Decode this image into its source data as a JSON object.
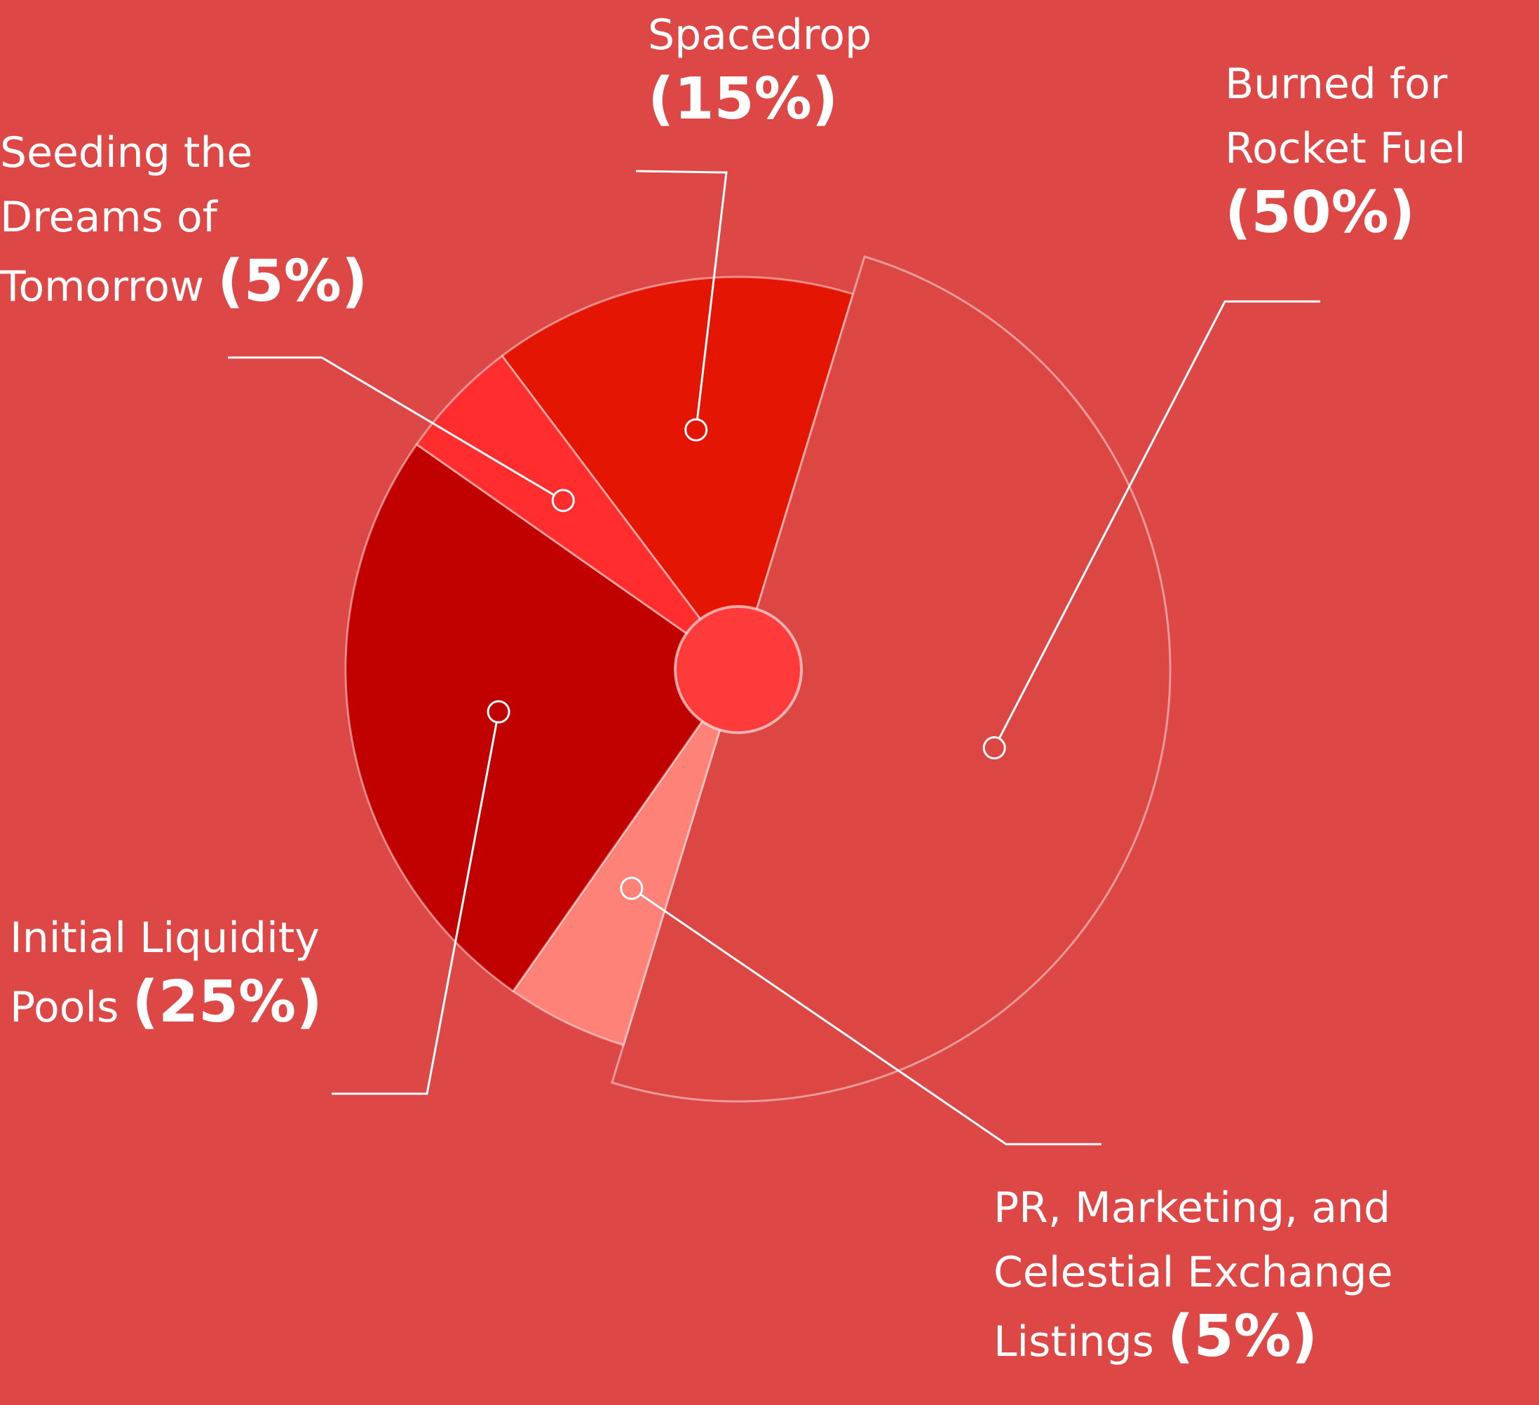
{
  "chart_data": {
    "type": "pie",
    "categories": [
      "Spacedrop",
      "Burned for Rocket Fuel",
      "PR, Marketing, and Celestial Exchange Listings",
      "Initial Liquidity Pools",
      "Seeding the Dreams of Tomorrow"
    ],
    "values": [
      15,
      50,
      5,
      25,
      5
    ],
    "value_labels": [
      "(15%)",
      "(50%)",
      "(5%)",
      "(25%)",
      "(5%)"
    ],
    "colors": [
      "#e51503",
      "#dc4744",
      "#ff8279",
      "#c10000",
      "#ff2d2d"
    ]
  }
}
